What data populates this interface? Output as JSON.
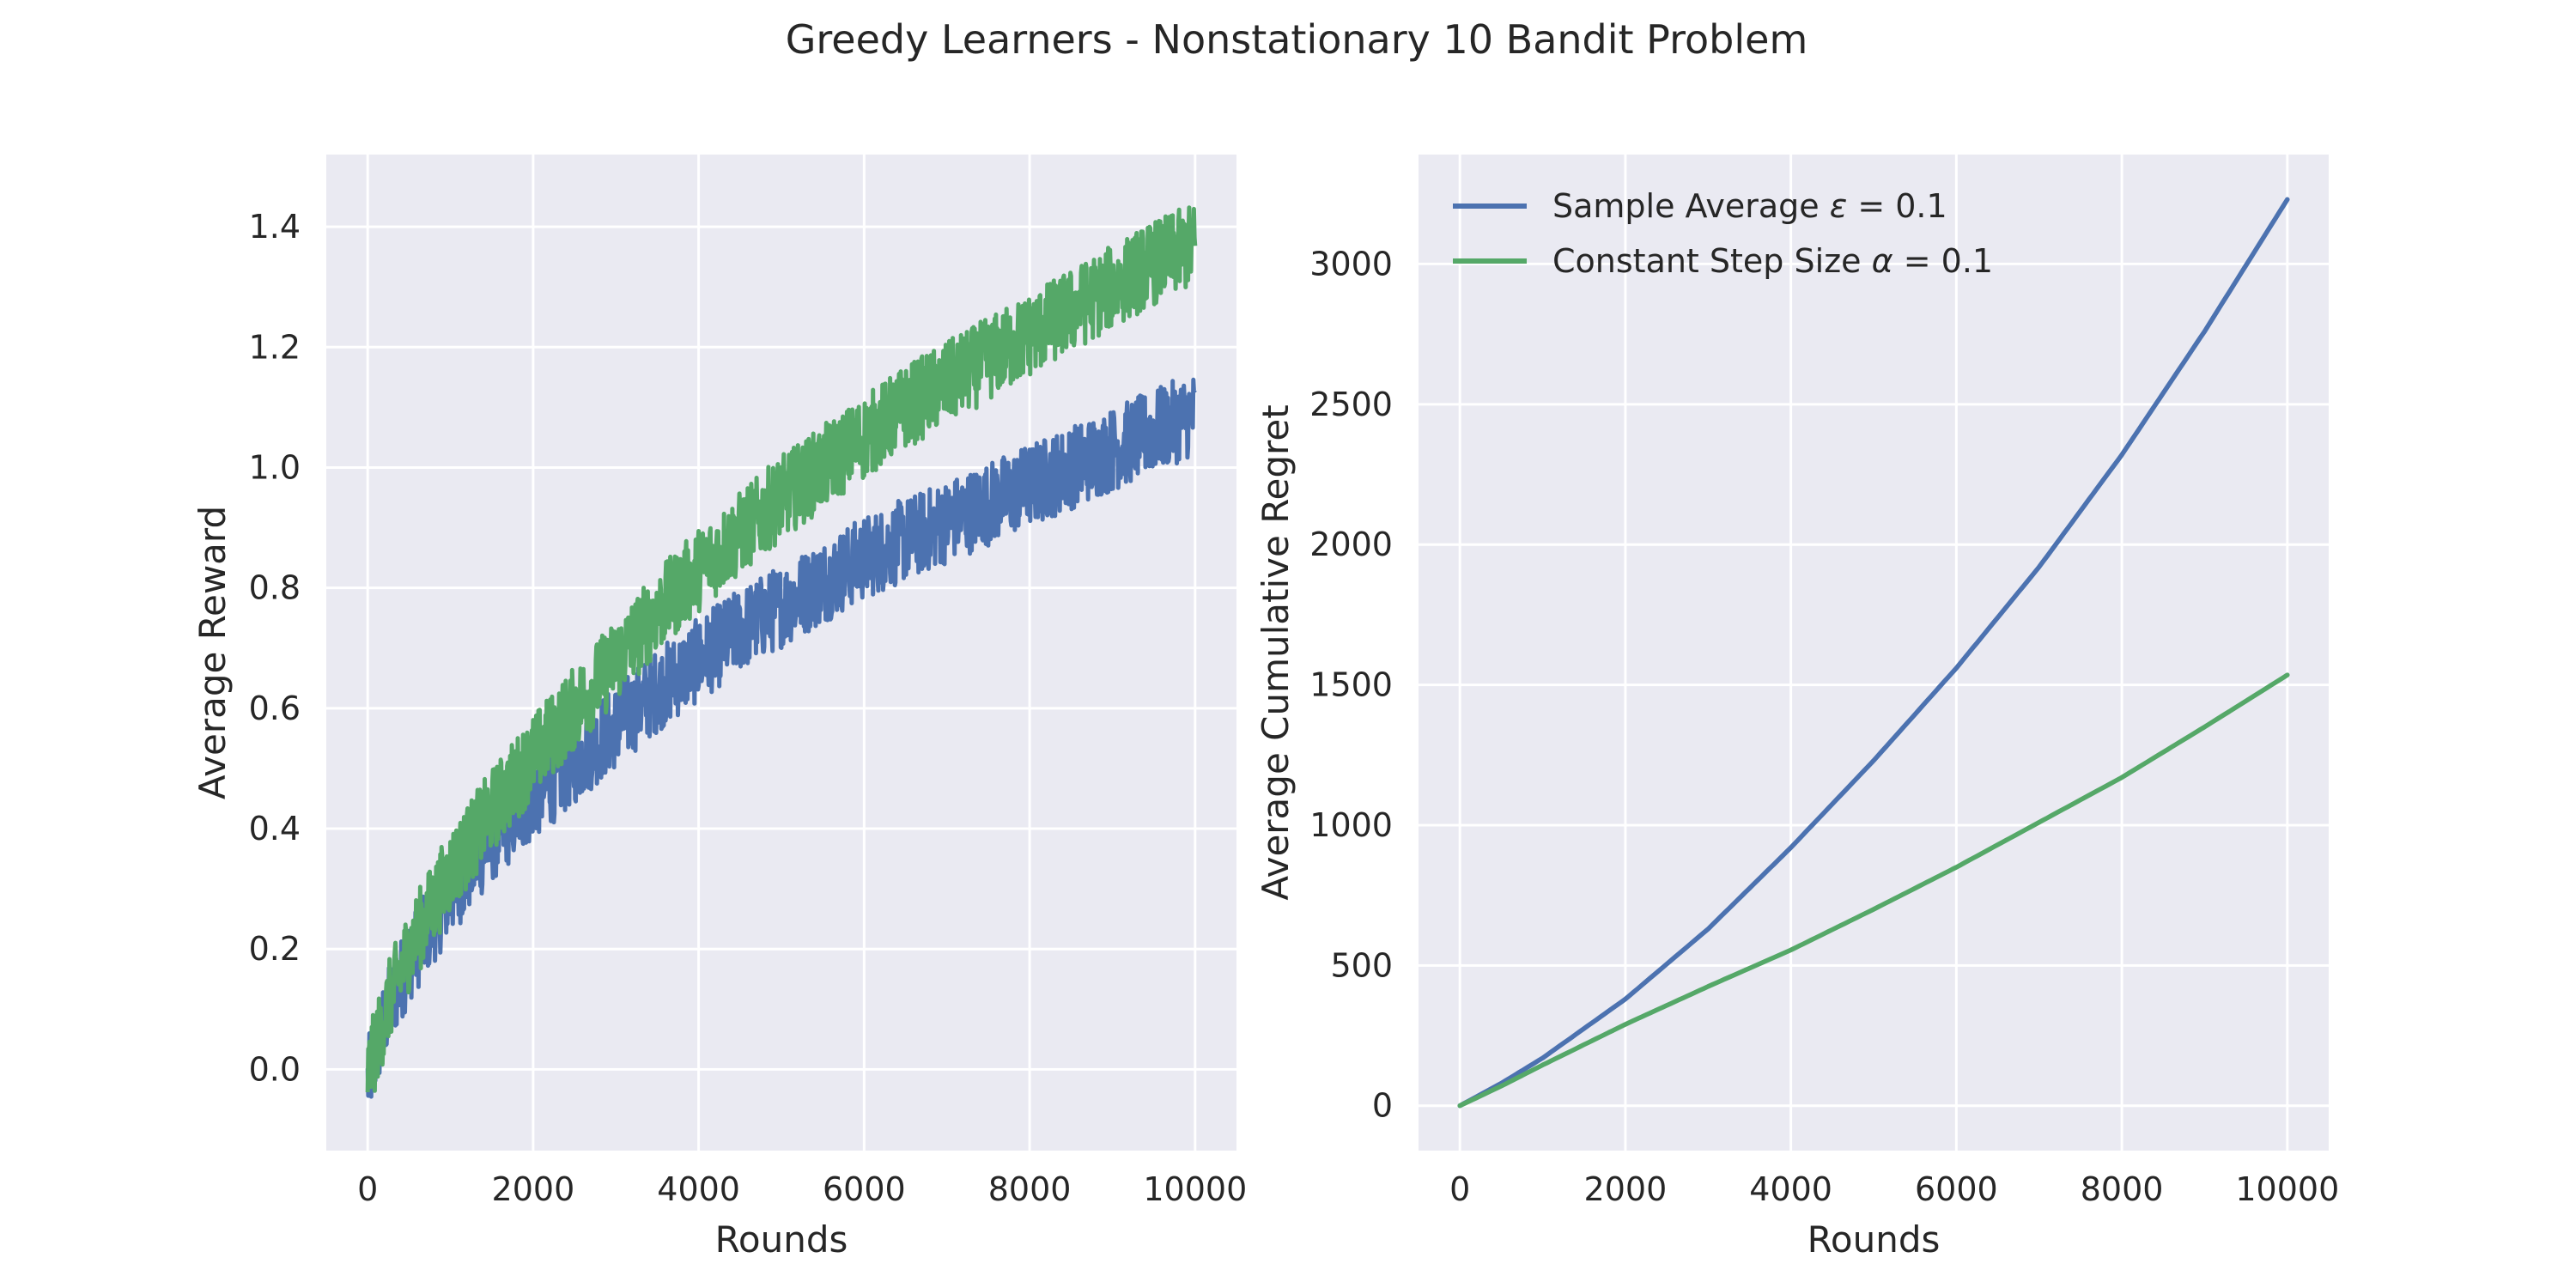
{
  "figure": {
    "title": "Greedy Learners - Nonstationary 10 Bandit Problem"
  },
  "colors": {
    "series_blue": "#4c72b0",
    "series_green": "#55a868",
    "axes_bg": "#eaeaf2",
    "grid": "#ffffff",
    "text": "#262626"
  },
  "chart_data": [
    {
      "type": "line",
      "xlabel": "Rounds",
      "ylabel": "Average Reward",
      "xlim": [
        -500,
        10500
      ],
      "ylim": [
        -0.135,
        1.52
      ],
      "xticks": [
        0,
        2000,
        4000,
        6000,
        8000,
        10000
      ],
      "xtick_labels": [
        "0",
        "2000",
        "4000",
        "6000",
        "8000",
        "10000"
      ],
      "yticks": [
        0.0,
        0.2,
        0.4,
        0.6,
        0.8,
        1.0,
        1.2,
        1.4
      ],
      "ytick_labels": [
        "0.0",
        "0.2",
        "0.4",
        "0.6",
        "0.8",
        "1.0",
        "1.2",
        "1.4"
      ],
      "grid": true,
      "legend": "none",
      "series": [
        {
          "color": "#4c72b0",
          "band": 0.07,
          "x": [
            0,
            250,
            500,
            1000,
            1500,
            2000,
            2500,
            3000,
            3500,
            4000,
            4500,
            5000,
            5500,
            6000,
            6500,
            7000,
            7500,
            8000,
            8500,
            9000,
            9500,
            10000
          ],
          "y": [
            -0.02,
            0.1,
            0.18,
            0.29,
            0.38,
            0.45,
            0.51,
            0.57,
            0.63,
            0.68,
            0.73,
            0.77,
            0.81,
            0.85,
            0.88,
            0.91,
            0.94,
            0.97,
            1.0,
            1.03,
            1.06,
            1.09
          ]
        },
        {
          "color": "#55a868",
          "band": 0.07,
          "x": [
            0,
            250,
            500,
            1000,
            1500,
            2000,
            2500,
            3000,
            3500,
            4000,
            4500,
            5000,
            5500,
            6000,
            6500,
            7000,
            7500,
            8000,
            8500,
            9000,
            9500,
            10000
          ],
          "y": [
            -0.01,
            0.11,
            0.2,
            0.33,
            0.43,
            0.52,
            0.6,
            0.68,
            0.76,
            0.83,
            0.89,
            0.95,
            1.0,
            1.05,
            1.1,
            1.14,
            1.18,
            1.22,
            1.26,
            1.3,
            1.34,
            1.37
          ]
        }
      ]
    },
    {
      "type": "line",
      "xlabel": "Rounds",
      "ylabel": "Average Cumulative Regret",
      "xlim": [
        -500,
        10500
      ],
      "ylim": [
        -160,
        3390
      ],
      "xticks": [
        0,
        2000,
        4000,
        6000,
        8000,
        10000
      ],
      "xtick_labels": [
        "0",
        "2000",
        "4000",
        "6000",
        "8000",
        "10000"
      ],
      "yticks": [
        0,
        500,
        1000,
        1500,
        2000,
        2500,
        3000
      ],
      "ytick_labels": [
        "0",
        "500",
        "1000",
        "1500",
        "2000",
        "2500",
        "3000"
      ],
      "grid": true,
      "legend": "top-left",
      "series": [
        {
          "name_prefix": "Sample Average ",
          "name_symbol": "ε",
          "name_suffix": " = 0.1",
          "color": "#4c72b0",
          "x": [
            0,
            500,
            1000,
            2000,
            3000,
            4000,
            5000,
            6000,
            7000,
            8000,
            9000,
            10000
          ],
          "y": [
            0,
            80,
            170,
            380,
            630,
            920,
            1230,
            1560,
            1920,
            2320,
            2760,
            3230
          ]
        },
        {
          "name_prefix": "Constant Step Size ",
          "name_symbol": "α",
          "name_suffix": " = 0.1",
          "color": "#55a868",
          "x": [
            0,
            500,
            1000,
            2000,
            3000,
            4000,
            5000,
            6000,
            7000,
            8000,
            9000,
            10000
          ],
          "y": [
            0,
            70,
            145,
            290,
            425,
            555,
            700,
            850,
            1010,
            1170,
            1350,
            1535
          ]
        }
      ]
    }
  ]
}
